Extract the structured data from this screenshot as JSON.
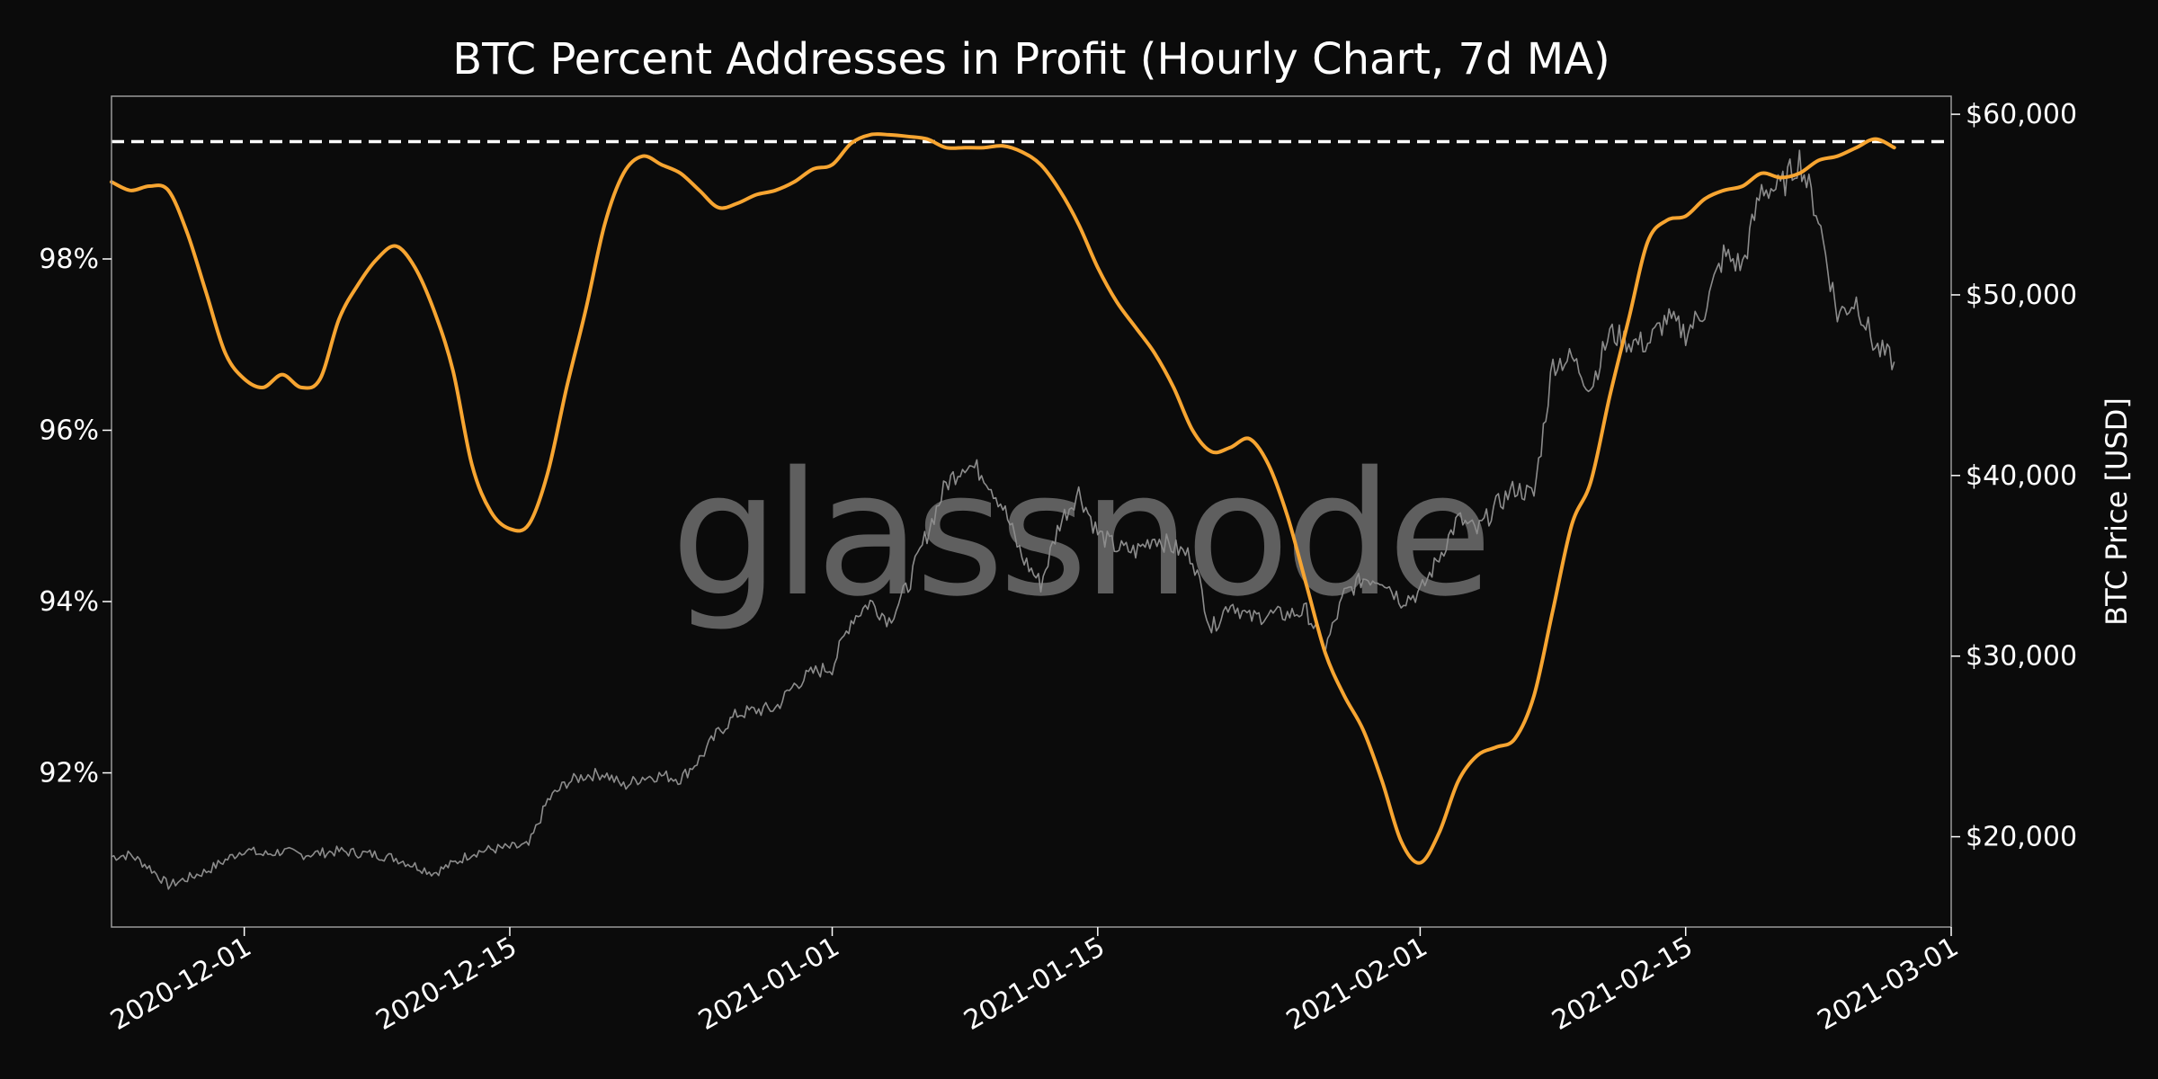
{
  "chart_data": {
    "type": "line",
    "title": "BTC Percent Addresses in Profit (Hourly Chart, 7d MA)",
    "watermark": "glassnode",
    "xlabel": "",
    "x_range": [
      "2020-11-24",
      "2021-03-01"
    ],
    "x_ticks": [
      "2020-12-01",
      "2020-12-15",
      "2021-01-01",
      "2021-01-15",
      "2021-02-01",
      "2021-02-15",
      "2021-03-01"
    ],
    "left_axis": {
      "label": "",
      "ylim": [
        90.2,
        99.9
      ],
      "ticks": [
        92,
        94,
        96,
        98
      ],
      "tick_labels": [
        "92%",
        "94%",
        "96%",
        "98%"
      ]
    },
    "right_axis": {
      "label": "BTC Price [USD]",
      "ylim": [
        15000,
        61000
      ],
      "ticks": [
        20000,
        30000,
        40000,
        50000,
        60000
      ],
      "tick_labels": [
        "$20,000",
        "$30,000",
        "$40,000",
        "$50,000",
        "$60,000"
      ]
    },
    "reference_line": {
      "axis": "left",
      "value": 99.37,
      "style": "dashed",
      "color": "#ffffff"
    },
    "grid": false,
    "series": [
      {
        "axis": "left",
        "color": "#f7a531",
        "points": [
          [
            "2020-11-24",
            98.9
          ],
          [
            "2020-11-25",
            98.8
          ],
          [
            "2020-11-26",
            98.85
          ],
          [
            "2020-11-27",
            98.8
          ],
          [
            "2020-11-28",
            98.3
          ],
          [
            "2020-11-29",
            97.6
          ],
          [
            "2020-11-30",
            96.9
          ],
          [
            "2020-12-01",
            96.6
          ],
          [
            "2020-12-02",
            96.5
          ],
          [
            "2020-12-03",
            96.65
          ],
          [
            "2020-12-04",
            96.5
          ],
          [
            "2020-12-05",
            96.6
          ],
          [
            "2020-12-06",
            97.3
          ],
          [
            "2020-12-07",
            97.7
          ],
          [
            "2020-12-08",
            98.0
          ],
          [
            "2020-12-09",
            98.15
          ],
          [
            "2020-12-10",
            97.9
          ],
          [
            "2020-12-11",
            97.4
          ],
          [
            "2020-12-12",
            96.7
          ],
          [
            "2020-12-13",
            95.6
          ],
          [
            "2020-12-14",
            95.05
          ],
          [
            "2020-12-15",
            94.85
          ],
          [
            "2020-12-16",
            94.9
          ],
          [
            "2020-12-17",
            95.5
          ],
          [
            "2020-12-18",
            96.5
          ],
          [
            "2020-12-19",
            97.4
          ],
          [
            "2020-12-20",
            98.4
          ],
          [
            "2020-12-21",
            99.0
          ],
          [
            "2020-12-22",
            99.2
          ],
          [
            "2020-12-23",
            99.1
          ],
          [
            "2020-12-24",
            99.0
          ],
          [
            "2020-12-25",
            98.8
          ],
          [
            "2020-12-26",
            98.6
          ],
          [
            "2020-12-27",
            98.65
          ],
          [
            "2020-12-28",
            98.75
          ],
          [
            "2020-12-29",
            98.8
          ],
          [
            "2020-12-30",
            98.9
          ],
          [
            "2020-12-31",
            99.05
          ],
          [
            "2021-01-01",
            99.1
          ],
          [
            "2021-01-02",
            99.35
          ],
          [
            "2021-01-03",
            99.45
          ],
          [
            "2021-01-04",
            99.45
          ],
          [
            "2021-01-05",
            99.43
          ],
          [
            "2021-01-06",
            99.4
          ],
          [
            "2021-01-07",
            99.3
          ],
          [
            "2021-01-08",
            99.3
          ],
          [
            "2021-01-09",
            99.3
          ],
          [
            "2021-01-10",
            99.32
          ],
          [
            "2021-01-11",
            99.25
          ],
          [
            "2021-01-12",
            99.1
          ],
          [
            "2021-01-13",
            98.8
          ],
          [
            "2021-01-14",
            98.4
          ],
          [
            "2021-01-15",
            97.9
          ],
          [
            "2021-01-16",
            97.5
          ],
          [
            "2021-01-17",
            97.2
          ],
          [
            "2021-01-18",
            96.9
          ],
          [
            "2021-01-19",
            96.5
          ],
          [
            "2021-01-20",
            96.0
          ],
          [
            "2021-01-21",
            95.75
          ],
          [
            "2021-01-22",
            95.8
          ],
          [
            "2021-01-23",
            95.9
          ],
          [
            "2021-01-24",
            95.6
          ],
          [
            "2021-01-25",
            95.0
          ],
          [
            "2021-01-26",
            94.2
          ],
          [
            "2021-01-27",
            93.4
          ],
          [
            "2021-01-28",
            92.9
          ],
          [
            "2021-01-29",
            92.5
          ],
          [
            "2021-01-30",
            91.9
          ],
          [
            "2021-01-31",
            91.2
          ],
          [
            "2021-02-01",
            90.95
          ],
          [
            "2021-02-02",
            91.3
          ],
          [
            "2021-02-03",
            91.9
          ],
          [
            "2021-02-04",
            92.2
          ],
          [
            "2021-02-05",
            92.3
          ],
          [
            "2021-02-06",
            92.4
          ],
          [
            "2021-02-07",
            92.9
          ],
          [
            "2021-02-08",
            93.9
          ],
          [
            "2021-02-09",
            94.9
          ],
          [
            "2021-02-10",
            95.4
          ],
          [
            "2021-02-11",
            96.4
          ],
          [
            "2021-02-12",
            97.3
          ],
          [
            "2021-02-13",
            98.2
          ],
          [
            "2021-02-14",
            98.45
          ],
          [
            "2021-02-15",
            98.5
          ],
          [
            "2021-02-16",
            98.7
          ],
          [
            "2021-02-17",
            98.8
          ],
          [
            "2021-02-18",
            98.85
          ],
          [
            "2021-02-19",
            99.0
          ],
          [
            "2021-02-20",
            98.95
          ],
          [
            "2021-02-21",
            99.0
          ],
          [
            "2021-02-22",
            99.15
          ],
          [
            "2021-02-23",
            99.2
          ],
          [
            "2021-02-24",
            99.3
          ],
          [
            "2021-02-25",
            99.4
          ],
          [
            "2021-02-26",
            99.3
          ]
        ]
      },
      {
        "axis": "right",
        "color": "#8c8c8c",
        "points": [
          [
            "2020-11-24",
            18900
          ],
          [
            "2020-11-25",
            19000
          ],
          [
            "2020-11-26",
            18300
          ],
          [
            "2020-11-27",
            17300
          ],
          [
            "2020-11-28",
            17700
          ],
          [
            "2020-11-29",
            18100
          ],
          [
            "2020-11-30",
            18700
          ],
          [
            "2020-12-01",
            19300
          ],
          [
            "2020-12-02",
            19000
          ],
          [
            "2020-12-03",
            19200
          ],
          [
            "2020-12-04",
            19000
          ],
          [
            "2020-12-05",
            19100
          ],
          [
            "2020-12-06",
            19200
          ],
          [
            "2020-12-07",
            19100
          ],
          [
            "2020-12-08",
            19000
          ],
          [
            "2020-12-09",
            18800
          ],
          [
            "2020-12-10",
            18400
          ],
          [
            "2020-12-11",
            18000
          ],
          [
            "2020-12-12",
            18500
          ],
          [
            "2020-12-13",
            19100
          ],
          [
            "2020-12-14",
            19300
          ],
          [
            "2020-12-15",
            19400
          ],
          [
            "2020-12-16",
            19500
          ],
          [
            "2020-12-17",
            22000
          ],
          [
            "2020-12-18",
            23000
          ],
          [
            "2020-12-19",
            23400
          ],
          [
            "2020-12-20",
            23500
          ],
          [
            "2020-12-21",
            22800
          ],
          [
            "2020-12-22",
            23300
          ],
          [
            "2020-12-23",
            23400
          ],
          [
            "2020-12-24",
            23200
          ],
          [
            "2020-12-25",
            24300
          ],
          [
            "2020-12-26",
            25800
          ],
          [
            "2020-12-27",
            26800
          ],
          [
            "2020-12-28",
            27000
          ],
          [
            "2020-12-29",
            27100
          ],
          [
            "2020-12-30",
            28400
          ],
          [
            "2020-12-31",
            29100
          ],
          [
            "2021-01-01",
            29400
          ],
          [
            "2021-01-02",
            32000
          ],
          [
            "2021-01-03",
            33000
          ],
          [
            "2021-01-04",
            32000
          ],
          [
            "2021-01-05",
            33900
          ],
          [
            "2021-01-06",
            36800
          ],
          [
            "2021-01-07",
            39500
          ],
          [
            "2021-01-08",
            40700
          ],
          [
            "2021-01-09",
            40100
          ],
          [
            "2021-01-10",
            38300
          ],
          [
            "2021-01-11",
            35500
          ],
          [
            "2021-01-12",
            34000
          ],
          [
            "2021-01-13",
            37400
          ],
          [
            "2021-01-14",
            39100
          ],
          [
            "2021-01-15",
            36800
          ],
          [
            "2021-01-16",
            36000
          ],
          [
            "2021-01-17",
            35800
          ],
          [
            "2021-01-18",
            36600
          ],
          [
            "2021-01-19",
            36000
          ],
          [
            "2021-01-20",
            35500
          ],
          [
            "2021-01-21",
            31500
          ],
          [
            "2021-01-22",
            33000
          ],
          [
            "2021-01-23",
            32100
          ],
          [
            "2021-01-24",
            32300
          ],
          [
            "2021-01-25",
            32300
          ],
          [
            "2021-01-26",
            32500
          ],
          [
            "2021-01-27",
            30400
          ],
          [
            "2021-01-28",
            33400
          ],
          [
            "2021-01-29",
            34300
          ],
          [
            "2021-01-30",
            34300
          ],
          [
            "2021-01-31",
            33100
          ],
          [
            "2021-02-01",
            33500
          ],
          [
            "2021-02-02",
            35500
          ],
          [
            "2021-02-03",
            37600
          ],
          [
            "2021-02-04",
            36900
          ],
          [
            "2021-02-05",
            38300
          ],
          [
            "2021-02-06",
            39300
          ],
          [
            "2021-02-07",
            38900
          ],
          [
            "2021-02-08",
            46200
          ],
          [
            "2021-02-09",
            46500
          ],
          [
            "2021-02-10",
            44900
          ],
          [
            "2021-02-11",
            47900
          ],
          [
            "2021-02-12",
            47400
          ],
          [
            "2021-02-13",
            47300
          ],
          [
            "2021-02-14",
            48700
          ],
          [
            "2021-02-15",
            47900
          ],
          [
            "2021-02-16",
            49200
          ],
          [
            "2021-02-17",
            52200
          ],
          [
            "2021-02-18",
            51600
          ],
          [
            "2021-02-19",
            55900
          ],
          [
            "2021-02-20",
            55900
          ],
          [
            "2021-02-21",
            57500
          ],
          [
            "2021-02-22",
            54300
          ],
          [
            "2021-02-23",
            48900
          ],
          [
            "2021-02-24",
            49700
          ],
          [
            "2021-02-25",
            47100
          ],
          [
            "2021-02-26",
            46300
          ]
        ]
      }
    ]
  }
}
